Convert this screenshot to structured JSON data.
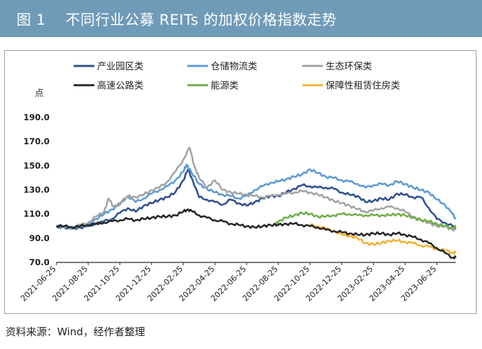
{
  "header": {
    "figure_label": "图 1",
    "title": "不同行业公募 REITs 的加权价格指数走势"
  },
  "footer": {
    "source": "资料来源：Wind，经作者整理"
  },
  "chart_data": {
    "type": "line",
    "title": "不同行业公募 REITs 的加权价格指数走势",
    "ylabel": "点",
    "xlabel": "",
    "ylim": [
      70,
      190
    ],
    "yticks": [
      "190.0",
      "170.0",
      "150.0",
      "130.0",
      "110.0",
      "90.0",
      "70.0"
    ],
    "x_ticks": [
      "2021-06-25",
      "2021-08-25",
      "2021-10-25",
      "2021-12-25",
      "2022-02-25",
      "2022-04-25",
      "2022-06-25",
      "2022-08-25",
      "2022-10-25",
      "2022-12-25",
      "2023-02-25",
      "2023-04-25",
      "2023-06-25"
    ],
    "x_tick_months": [
      0,
      2,
      4,
      6,
      8,
      10,
      12,
      14,
      16,
      18,
      20,
      22,
      24
    ],
    "x_range_months": [
      0,
      25.2
    ],
    "legend": "top",
    "series": [
      {
        "name": "产业园区类",
        "color": "#2f4f8f",
        "points": [
          [
            0,
            100
          ],
          [
            0.5,
            99
          ],
          [
            1,
            98
          ],
          [
            1.5,
            99
          ],
          [
            2,
            100
          ],
          [
            2.5,
            102
          ],
          [
            3,
            104
          ],
          [
            3.5,
            106
          ],
          [
            4,
            111
          ],
          [
            4.5,
            115
          ],
          [
            5,
            112
          ],
          [
            5.5,
            117
          ],
          [
            6,
            119
          ],
          [
            6.5,
            122
          ],
          [
            7,
            124
          ],
          [
            7.5,
            128
          ],
          [
            8,
            138
          ],
          [
            8.3,
            147
          ],
          [
            8.6,
            138
          ],
          [
            9,
            124
          ],
          [
            9.5,
            122
          ],
          [
            10,
            120
          ],
          [
            10.5,
            118
          ],
          [
            11,
            122
          ],
          [
            11.5,
            119
          ],
          [
            12,
            117
          ],
          [
            12.5,
            120
          ],
          [
            13,
            123
          ],
          [
            13.5,
            125
          ],
          [
            14,
            125
          ],
          [
            14.5,
            128
          ],
          [
            15,
            131
          ],
          [
            15.5,
            134
          ],
          [
            16,
            133
          ],
          [
            16.5,
            132
          ],
          [
            17,
            132
          ],
          [
            17.5,
            131
          ],
          [
            18,
            128
          ],
          [
            18.5,
            126
          ],
          [
            19,
            125
          ],
          [
            19.5,
            120
          ],
          [
            20,
            121
          ],
          [
            20.5,
            123
          ],
          [
            21,
            122
          ],
          [
            21.5,
            127
          ],
          [
            22,
            126
          ],
          [
            22.5,
            124
          ],
          [
            23,
            124
          ],
          [
            23.5,
            115
          ],
          [
            24,
            106
          ],
          [
            24.5,
            103
          ],
          [
            25,
            100
          ],
          [
            25.2,
            99
          ]
        ]
      },
      {
        "name": "仓储物流类",
        "color": "#5b9ad5",
        "points": [
          [
            0,
            100
          ],
          [
            0.5,
            99
          ],
          [
            1,
            99
          ],
          [
            1.5,
            100
          ],
          [
            2,
            101
          ],
          [
            2.5,
            106
          ],
          [
            3,
            110
          ],
          [
            3.5,
            114
          ],
          [
            4,
            118
          ],
          [
            4.5,
            125
          ],
          [
            5,
            120
          ],
          [
            5.5,
            123
          ],
          [
            6,
            127
          ],
          [
            6.5,
            130
          ],
          [
            7,
            133
          ],
          [
            7.5,
            138
          ],
          [
            8,
            145
          ],
          [
            8.2,
            151
          ],
          [
            8.5,
            145
          ],
          [
            9,
            135
          ],
          [
            9.5,
            131
          ],
          [
            10,
            128
          ],
          [
            10.5,
            126
          ],
          [
            11,
            125
          ],
          [
            11.5,
            123
          ],
          [
            12,
            125
          ],
          [
            12.5,
            130
          ],
          [
            13,
            133
          ],
          [
            13.5,
            136
          ],
          [
            14,
            137
          ],
          [
            14.5,
            139
          ],
          [
            15,
            141
          ],
          [
            15.5,
            143
          ],
          [
            16,
            147
          ],
          [
            16.5,
            144
          ],
          [
            17,
            141
          ],
          [
            17.5,
            140
          ],
          [
            18,
            138
          ],
          [
            18.5,
            137
          ],
          [
            19,
            135
          ],
          [
            19.5,
            132
          ],
          [
            20,
            134
          ],
          [
            20.5,
            135
          ],
          [
            21,
            134
          ],
          [
            21.5,
            137
          ],
          [
            22,
            135
          ],
          [
            22.5,
            132
          ],
          [
            23,
            130
          ],
          [
            23.5,
            128
          ],
          [
            24,
            122
          ],
          [
            24.5,
            118
          ],
          [
            25,
            110
          ],
          [
            25.2,
            106
          ]
        ]
      },
      {
        "name": "生态环保类",
        "color": "#a3a3a3",
        "points": [
          [
            0,
            100
          ],
          [
            0.5,
            99
          ],
          [
            1,
            99
          ],
          [
            1.5,
            101
          ],
          [
            2,
            103
          ],
          [
            2.5,
            108
          ],
          [
            3,
            112
          ],
          [
            3.3,
            123
          ],
          [
            3.6,
            116
          ],
          [
            4,
            119
          ],
          [
            4.5,
            125
          ],
          [
            5,
            124
          ],
          [
            5.5,
            126
          ],
          [
            6,
            130
          ],
          [
            6.5,
            132
          ],
          [
            7,
            137
          ],
          [
            7.5,
            145
          ],
          [
            8,
            155
          ],
          [
            8.4,
            165
          ],
          [
            8.7,
            150
          ],
          [
            9,
            140
          ],
          [
            9.5,
            132
          ],
          [
            10,
            138
          ],
          [
            10.5,
            130
          ],
          [
            11,
            128
          ],
          [
            11.5,
            127
          ],
          [
            12,
            126
          ],
          [
            12.5,
            125
          ],
          [
            13,
            124
          ],
          [
            13.5,
            125
          ],
          [
            14,
            126
          ],
          [
            14.5,
            127
          ],
          [
            15,
            128
          ],
          [
            15.5,
            129
          ],
          [
            16,
            128
          ],
          [
            16.5,
            126
          ],
          [
            17,
            124
          ],
          [
            17.5,
            121
          ],
          [
            18,
            119
          ],
          [
            18.5,
            117
          ],
          [
            19,
            114
          ],
          [
            19.5,
            112
          ],
          [
            20,
            113
          ],
          [
            20.5,
            115
          ],
          [
            21,
            116
          ],
          [
            21.5,
            115
          ],
          [
            22,
            112
          ],
          [
            22.5,
            108
          ],
          [
            23,
            105
          ],
          [
            23.5,
            103
          ],
          [
            24,
            100
          ],
          [
            24.5,
            100
          ],
          [
            25,
            97
          ],
          [
            25.2,
            98
          ]
        ]
      },
      {
        "name": "高速公路类",
        "color": "#262626",
        "points": [
          [
            0,
            100
          ],
          [
            0.5,
            100
          ],
          [
            1,
            99
          ],
          [
            1.5,
            100
          ],
          [
            2,
            101
          ],
          [
            2.5,
            102
          ],
          [
            3,
            103
          ],
          [
            3.5,
            104
          ],
          [
            4,
            105
          ],
          [
            4.5,
            106
          ],
          [
            5,
            105
          ],
          [
            5.5,
            106
          ],
          [
            6,
            107
          ],
          [
            6.5,
            108
          ],
          [
            7,
            108
          ],
          [
            7.5,
            109
          ],
          [
            8,
            112
          ],
          [
            8.3,
            114
          ],
          [
            8.6,
            112
          ],
          [
            9,
            109
          ],
          [
            9.5,
            107
          ],
          [
            10,
            105
          ],
          [
            10.5,
            104
          ],
          [
            11,
            102
          ],
          [
            11.5,
            101
          ],
          [
            12,
            100
          ],
          [
            12.5,
            99
          ],
          [
            13,
            100
          ],
          [
            13.5,
            101
          ],
          [
            14,
            101
          ],
          [
            14.5,
            102
          ],
          [
            15,
            102
          ],
          [
            15.5,
            101
          ],
          [
            16,
            100
          ],
          [
            16.5,
            99
          ],
          [
            17,
            97
          ],
          [
            17.5,
            96
          ],
          [
            18,
            95
          ],
          [
            18.5,
            94
          ],
          [
            19,
            93
          ],
          [
            19.5,
            93
          ],
          [
            20,
            94
          ],
          [
            20.5,
            94
          ],
          [
            21,
            93
          ],
          [
            21.5,
            94
          ],
          [
            22,
            93
          ],
          [
            22.5,
            91
          ],
          [
            23,
            89
          ],
          [
            23.5,
            86
          ],
          [
            24,
            82
          ],
          [
            24.5,
            78
          ],
          [
            25,
            74
          ],
          [
            25.2,
            74
          ]
        ]
      },
      {
        "name": "能源类",
        "color": "#70ad47",
        "points": [
          [
            13.8,
            101
          ],
          [
            14,
            104
          ],
          [
            14.5,
            107
          ],
          [
            15,
            109
          ],
          [
            15.5,
            111
          ],
          [
            16,
            110
          ],
          [
            16.5,
            108
          ],
          [
            17,
            108
          ],
          [
            17.5,
            109
          ],
          [
            18,
            110
          ],
          [
            18.5,
            110
          ],
          [
            19,
            109
          ],
          [
            19.5,
            109
          ],
          [
            20,
            109
          ],
          [
            20.5,
            109
          ],
          [
            21,
            109
          ],
          [
            21.5,
            110
          ],
          [
            22,
            109
          ],
          [
            22.5,
            107
          ],
          [
            23,
            105
          ],
          [
            23.5,
            104
          ],
          [
            24,
            102
          ],
          [
            24.5,
            100
          ],
          [
            25,
            99
          ],
          [
            25.2,
            100
          ]
        ]
      },
      {
        "name": "保障性租赁住房类",
        "color": "#f2b134",
        "points": [
          [
            16,
            101
          ],
          [
            16.5,
            100
          ],
          [
            17,
            98
          ],
          [
            17.5,
            96
          ],
          [
            18,
            93
          ],
          [
            18.5,
            92
          ],
          [
            19,
            90
          ],
          [
            19.5,
            86
          ],
          [
            20,
            85
          ],
          [
            20.5,
            86
          ],
          [
            21,
            88
          ],
          [
            21.5,
            88
          ],
          [
            22,
            87
          ],
          [
            22.5,
            86
          ],
          [
            23,
            84
          ],
          [
            23.5,
            83
          ],
          [
            24,
            81
          ],
          [
            24.5,
            80
          ],
          [
            25,
            78
          ],
          [
            25.2,
            78
          ]
        ]
      }
    ]
  }
}
